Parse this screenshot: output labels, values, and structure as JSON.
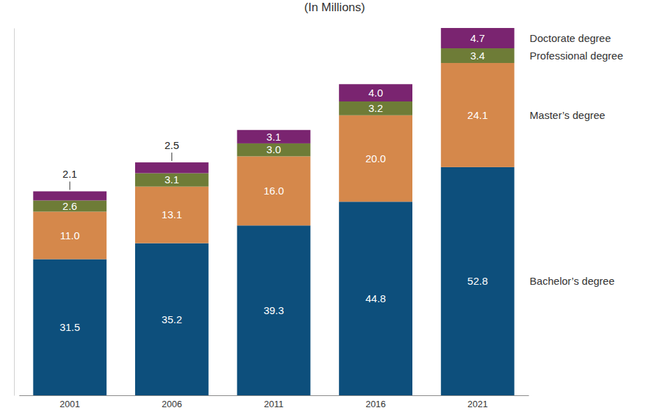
{
  "chart_data": {
    "type": "bar",
    "title": "(In Millions)",
    "categories": [
      "2001",
      "2006",
      "2011",
      "2016",
      "2021"
    ],
    "series": [
      {
        "name": "Bachelor’s degree",
        "color": "#0d4f7c",
        "values": [
          31.5,
          35.2,
          39.3,
          44.8,
          52.8
        ]
      },
      {
        "name": "Master’s degree",
        "color": "#d5884b",
        "values": [
          11.0,
          13.1,
          16.0,
          20.0,
          24.1
        ]
      },
      {
        "name": "Professional degree",
        "color": "#6e7c37",
        "values": [
          2.6,
          3.1,
          3.0,
          3.2,
          3.4
        ]
      },
      {
        "name": "Doctorate degree",
        "color": "#7a2470",
        "values": [
          2.1,
          2.5,
          3.1,
          4.0,
          4.7
        ]
      }
    ],
    "ylim": [
      0,
      85
    ],
    "stacked": true,
    "data_labels": true,
    "legend": "right",
    "tick_labels": "x",
    "grid": false
  }
}
